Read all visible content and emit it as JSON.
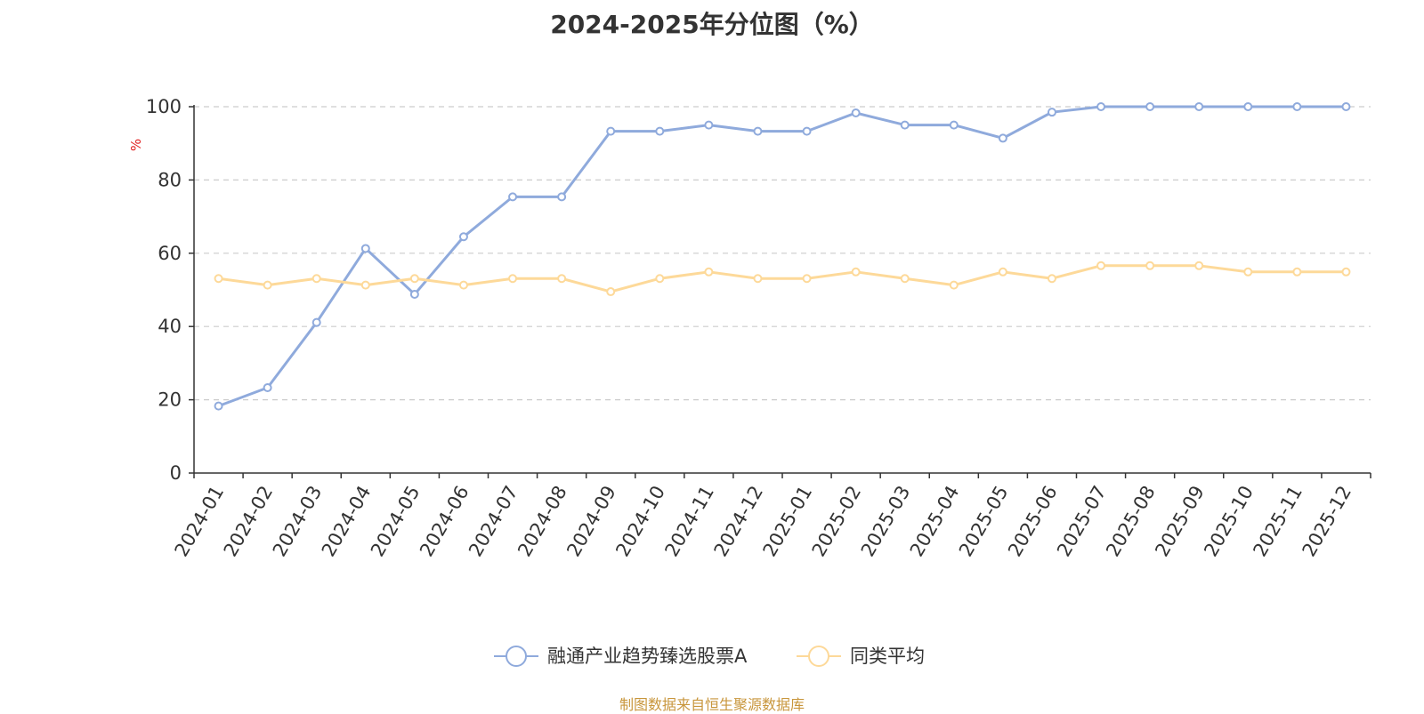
{
  "chart_data": {
    "type": "line",
    "title": "2024-2025年分位图（%）",
    "ylabel": "%",
    "xlabel": "",
    "ylim": [
      0,
      100
    ],
    "yticks": [
      0,
      20,
      40,
      60,
      80,
      100
    ],
    "grid": "horizontal-dashed",
    "legend_position": "bottom-center",
    "categories": [
      "2024-01",
      "2024-02",
      "2024-03",
      "2024-04",
      "2024-05",
      "2024-06",
      "2024-07",
      "2024-08",
      "2024-09",
      "2024-10",
      "2024-11",
      "2024-12",
      "2025-01",
      "2025-02",
      "2025-03",
      "2025-04",
      "2025-05",
      "2025-06",
      "2025-07",
      "2025-08",
      "2025-09",
      "2025-10",
      "2025-11",
      "2025-12"
    ],
    "series": [
      {
        "name": "融通产业趋势臻选股票A",
        "color": "#8faadc",
        "values": [
          18.3,
          23.3,
          41.1,
          61.3,
          48.8,
          64.5,
          75.4,
          75.4,
          93.3,
          93.3,
          95.0,
          93.3,
          93.3,
          98.3,
          95.0,
          95.0,
          91.4,
          98.5,
          100,
          100,
          100,
          100,
          100,
          100
        ]
      },
      {
        "name": "同类平均",
        "color": "#fdd999",
        "values": [
          53.1,
          51.3,
          53.1,
          51.3,
          53.1,
          51.3,
          53.1,
          53.1,
          49.5,
          53.1,
          54.9,
          53.1,
          53.1,
          54.9,
          53.1,
          51.3,
          54.9,
          53.1,
          56.6,
          56.6,
          56.6,
          54.9,
          54.9,
          54.9
        ]
      }
    ]
  },
  "source_note": "制图数据来自恒生聚源数据库"
}
